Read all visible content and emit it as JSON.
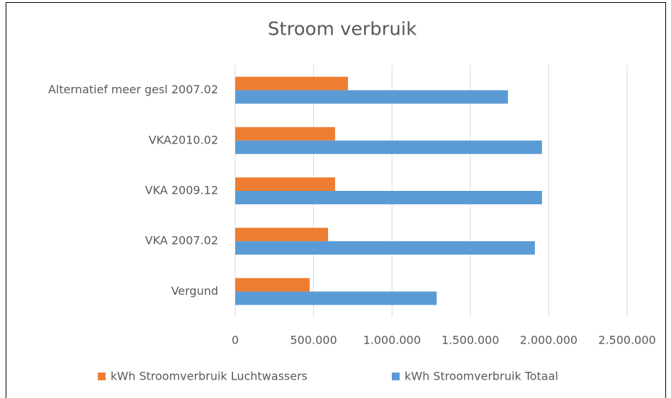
{
  "chart_data": {
    "type": "hbar",
    "title": "Stroom verbruik",
    "categories": [
      "Vergund",
      "VKA 2007.02",
      "VKA 2009.12",
      "VKA2010.02",
      "Alternatief meer gesl 2007.02"
    ],
    "series": [
      {
        "name": "kWh Stroomverbruik Luchtwassers",
        "color": "#ed7d31",
        "values": [
          475000,
          592000,
          637000,
          637000,
          719000
        ]
      },
      {
        "name": "kWh Stroomverbruik Totaal",
        "color": "#5b9bd5",
        "values": [
          1285000,
          1912000,
          1957000,
          1957000,
          1740000
        ]
      }
    ],
    "xlim": [
      0,
      2500000
    ],
    "xticks": [
      0,
      {
        "value": 500000,
        "label": "500.000"
      },
      {
        "value": 1000000,
        "label": "1.000.000"
      },
      {
        "value": 1500000,
        "label": "1.500.000"
      },
      {
        "value": 2000000,
        "label": "2.000.000"
      },
      {
        "value": 2500000,
        "label": "2.500.000"
      }
    ],
    "grid": true,
    "legend": "bottom"
  }
}
